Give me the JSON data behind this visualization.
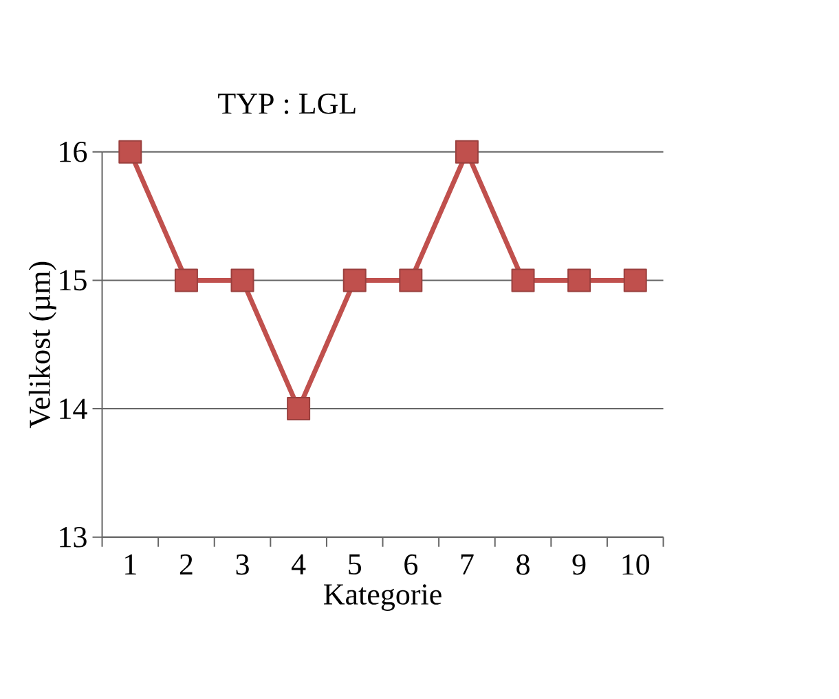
{
  "chart_data": {
    "type": "line",
    "title": "TYP :  LGL",
    "xlabel": "Kategorie",
    "ylabel": "Velikost (µm)",
    "categories": [
      "1",
      "2",
      "3",
      "4",
      "5",
      "6",
      "7",
      "8",
      "9",
      "10"
    ],
    "series": [
      {
        "color": "#c0504d",
        "values": [
          16,
          15,
          15,
          14,
          15,
          15,
          16,
          15,
          15,
          15
        ]
      }
    ],
    "ylim": [
      13,
      16
    ],
    "yticks": [
      13,
      14,
      15,
      16
    ],
    "grid": "y",
    "marker": "square",
    "line_style": "solid"
  }
}
